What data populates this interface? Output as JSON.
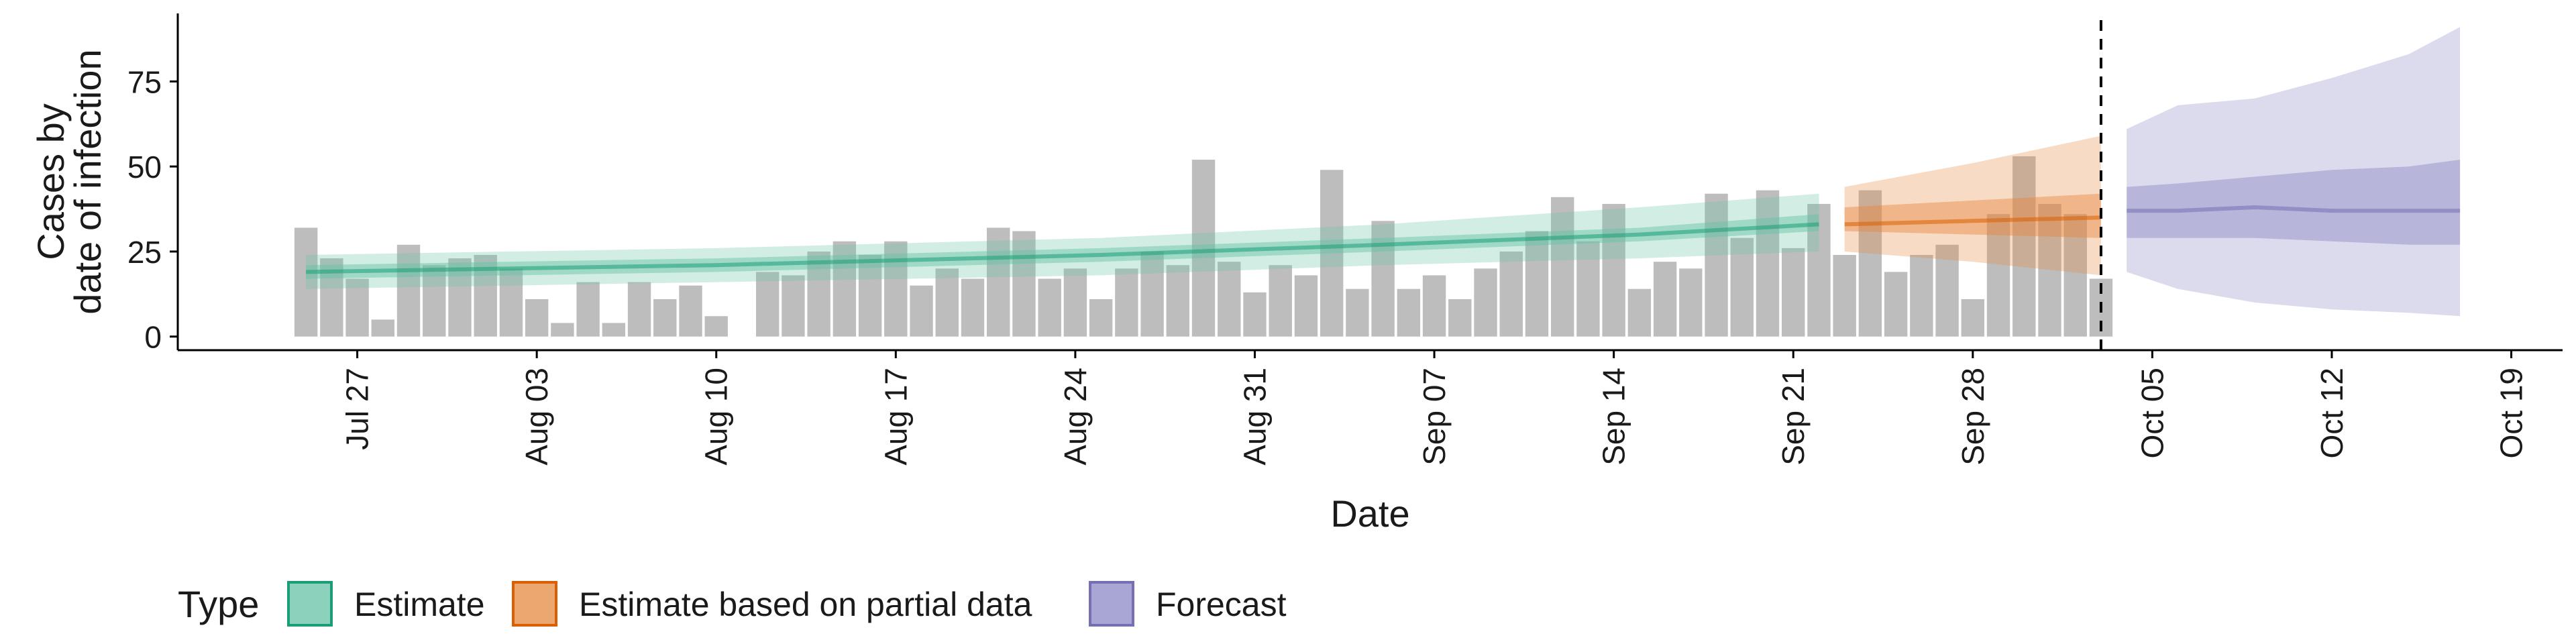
{
  "chart_data": {
    "type": "bar",
    "xlabel": "Date",
    "ylabel_lines": [
      "Cases by",
      "date of infection"
    ],
    "ylim": [
      -4,
      95
    ],
    "y_ticks": [
      0,
      25,
      50,
      75
    ],
    "x_range": [
      "2020-07-20",
      "2020-10-21"
    ],
    "x_ticks": [
      {
        "date": "2020-07-27",
        "label": "Jul 27"
      },
      {
        "date": "2020-08-03",
        "label": "Aug 03"
      },
      {
        "date": "2020-08-10",
        "label": "Aug 10"
      },
      {
        "date": "2020-08-17",
        "label": "Aug 17"
      },
      {
        "date": "2020-08-24",
        "label": "Aug 24"
      },
      {
        "date": "2020-08-31",
        "label": "Aug 31"
      },
      {
        "date": "2020-09-07",
        "label": "Sep 07"
      },
      {
        "date": "2020-09-14",
        "label": "Sep 14"
      },
      {
        "date": "2020-09-21",
        "label": "Sep 21"
      },
      {
        "date": "2020-09-28",
        "label": "Sep 28"
      },
      {
        "date": "2020-10-05",
        "label": "Oct 05"
      },
      {
        "date": "2020-10-12",
        "label": "Oct 12"
      },
      {
        "date": "2020-10-19",
        "label": "Oct 19"
      }
    ],
    "bars": {
      "start_date": "2020-07-25",
      "color": "#bdbdbd",
      "values": [
        32,
        23,
        17,
        5,
        27,
        21,
        23,
        24,
        20,
        11,
        4,
        16,
        4,
        16,
        11,
        15,
        6,
        0,
        19,
        18,
        25,
        28,
        24,
        28,
        15,
        20,
        17,
        32,
        31,
        17,
        20,
        11,
        20,
        25,
        21,
        52,
        22,
        13,
        21,
        18,
        49,
        14,
        34,
        14,
        18,
        11,
        20,
        25,
        31,
        41,
        28,
        39,
        14,
        22,
        20,
        42,
        29,
        43,
        26,
        39,
        24,
        43,
        19,
        24,
        27,
        11,
        36,
        53,
        39,
        36,
        17
      ]
    },
    "vline_date": "2020-10-03",
    "series": [
      {
        "name": "Estimate",
        "color": "#1b9e77",
        "fill": "#66c2a5",
        "x": [
          "2020-07-25",
          "2020-08-10",
          "2020-08-25",
          "2020-09-05",
          "2020-09-15",
          "2020-09-22"
        ],
        "median": [
          19,
          21,
          24,
          27,
          30,
          33
        ],
        "lower90": [
          14,
          16,
          18,
          21,
          23,
          25
        ],
        "upper90": [
          24,
          26,
          29,
          33,
          38,
          42
        ],
        "lower50": [
          17,
          19,
          22,
          25,
          28,
          31
        ],
        "upper50": [
          21,
          23,
          26,
          29,
          32,
          36
        ]
      },
      {
        "name": "Estimate based on partial data",
        "color": "#d95f02",
        "fill": "#e6883f",
        "x": [
          "2020-09-23",
          "2020-09-28",
          "2020-10-03"
        ],
        "median": [
          33,
          34,
          35
        ],
        "lower90": [
          25,
          22,
          18
        ],
        "upper90": [
          44,
          51,
          59
        ],
        "lower50": [
          31,
          30,
          29
        ],
        "upper50": [
          38,
          40,
          42
        ]
      },
      {
        "name": "Forecast",
        "color": "#7570b3",
        "fill": "#8c88c4",
        "x": [
          "2020-10-04",
          "2020-10-06",
          "2020-10-09",
          "2020-10-12",
          "2020-10-15",
          "2020-10-17"
        ],
        "median": [
          37,
          37,
          38,
          37,
          37,
          37
        ],
        "lower90": [
          19,
          14,
          10,
          8,
          7,
          6
        ],
        "upper90": [
          61,
          68,
          70,
          76,
          83,
          91
        ],
        "lower50": [
          29,
          29,
          29,
          28,
          27,
          27
        ],
        "upper50": [
          44,
          45,
          47,
          49,
          50,
          52
        ]
      }
    ],
    "legend": {
      "title": "Type",
      "position": "bottom",
      "items": [
        "Estimate",
        "Estimate based on partial data",
        "Forecast"
      ]
    }
  }
}
